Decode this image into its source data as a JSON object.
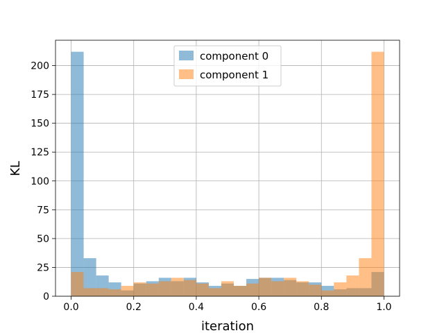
{
  "chart_data": {
    "type": "bar",
    "histogram": true,
    "title": "",
    "xlabel": "iteration",
    "ylabel": "KL",
    "xlim": [
      -0.05,
      1.05
    ],
    "ylim": [
      0,
      222
    ],
    "grid": true,
    "legend_position": "top-center",
    "bin_edges": [
      0.0,
      0.04,
      0.08,
      0.12,
      0.16,
      0.2,
      0.24,
      0.28,
      0.32,
      0.36,
      0.4,
      0.44,
      0.48,
      0.52,
      0.56,
      0.6,
      0.64,
      0.68,
      0.72,
      0.76,
      0.8,
      0.84,
      0.88,
      0.92,
      0.96,
      1.0
    ],
    "xticks": [
      0.0,
      0.2,
      0.4,
      0.6,
      0.8,
      1.0
    ],
    "xtick_labels": [
      "0.0",
      "0.2",
      "0.4",
      "0.6",
      "0.8",
      "1.0"
    ],
    "yticks": [
      0,
      25,
      50,
      75,
      100,
      125,
      150,
      175,
      200
    ],
    "ytick_labels": [
      "0",
      "25",
      "50",
      "75",
      "100",
      "125",
      "150",
      "175",
      "200"
    ],
    "series": [
      {
        "name": "component 0",
        "color": "#1f77b4",
        "values": [
          212,
          33,
          18,
          12,
          5,
          11,
          13,
          16,
          13,
          16,
          12,
          9,
          11,
          9,
          15,
          16,
          16,
          14,
          12,
          12,
          9,
          6,
          7,
          7,
          21
        ]
      },
      {
        "name": "component 1",
        "color": "#ff7f0e",
        "values": [
          21,
          7,
          7,
          6,
          9,
          12,
          11,
          13,
          16,
          14,
          11,
          7,
          13,
          9,
          11,
          16,
          13,
          16,
          13,
          10,
          5,
          12,
          18,
          33,
          212
        ]
      }
    ]
  }
}
